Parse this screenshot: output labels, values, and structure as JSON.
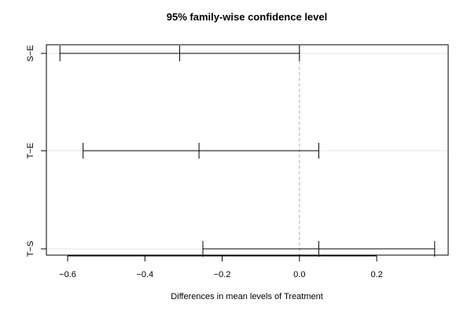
{
  "chart_data": {
    "type": "interval",
    "title": "95% family-wise confidence level",
    "xlabel": "Differences in mean levels of Treatment",
    "ylabel": "",
    "xlim": [
      -0.655,
      0.385
    ],
    "x_ticks": [
      -0.6,
      -0.4,
      -0.2,
      0.0,
      0.2
    ],
    "x_tick_labels": [
      "−0.6",
      "−0.4",
      "−0.2",
      "0.0",
      "0.2"
    ],
    "reference_line": 0,
    "grid": "horizontal",
    "comparisons": [
      {
        "label": "S−E",
        "lower": -0.62,
        "estimate": -0.31,
        "upper": 0.0
      },
      {
        "label": "T−E",
        "lower": -0.56,
        "estimate": -0.26,
        "upper": 0.05
      },
      {
        "label": "T−S",
        "lower": -0.25,
        "estimate": 0.05,
        "upper": 0.35
      }
    ]
  }
}
